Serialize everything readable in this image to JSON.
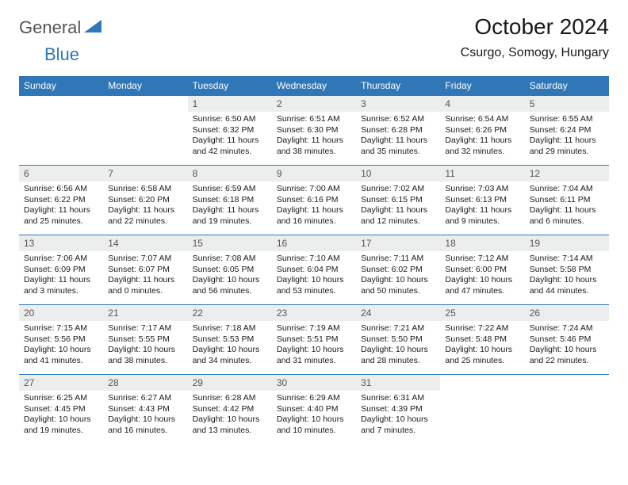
{
  "brand": {
    "part1": "General",
    "part2": "Blue",
    "text_color": "#555555",
    "accent_color": "#2f77b7"
  },
  "title": "October 2024",
  "location": "Csurgo, Somogy, Hungary",
  "colors": {
    "header_bg": "#2f77b7",
    "header_text": "#ffffff",
    "daynum_bg": "#eceded",
    "daynum_text": "#555555",
    "border": "#2f77b7",
    "body_text": "#1a1a1a"
  },
  "fonts": {
    "title_size": 28,
    "location_size": 16,
    "header_size": 12,
    "daynum_size": 12,
    "cell_size": 10.5
  },
  "day_headers": [
    "Sunday",
    "Monday",
    "Tuesday",
    "Wednesday",
    "Thursday",
    "Friday",
    "Saturday"
  ],
  "weeks": [
    [
      null,
      null,
      {
        "n": "1",
        "sr": "6:50 AM",
        "ss": "6:32 PM",
        "dl": "11 hours and 42 minutes."
      },
      {
        "n": "2",
        "sr": "6:51 AM",
        "ss": "6:30 PM",
        "dl": "11 hours and 38 minutes."
      },
      {
        "n": "3",
        "sr": "6:52 AM",
        "ss": "6:28 PM",
        "dl": "11 hours and 35 minutes."
      },
      {
        "n": "4",
        "sr": "6:54 AM",
        "ss": "6:26 PM",
        "dl": "11 hours and 32 minutes."
      },
      {
        "n": "5",
        "sr": "6:55 AM",
        "ss": "6:24 PM",
        "dl": "11 hours and 29 minutes."
      }
    ],
    [
      {
        "n": "6",
        "sr": "6:56 AM",
        "ss": "6:22 PM",
        "dl": "11 hours and 25 minutes."
      },
      {
        "n": "7",
        "sr": "6:58 AM",
        "ss": "6:20 PM",
        "dl": "11 hours and 22 minutes."
      },
      {
        "n": "8",
        "sr": "6:59 AM",
        "ss": "6:18 PM",
        "dl": "11 hours and 19 minutes."
      },
      {
        "n": "9",
        "sr": "7:00 AM",
        "ss": "6:16 PM",
        "dl": "11 hours and 16 minutes."
      },
      {
        "n": "10",
        "sr": "7:02 AM",
        "ss": "6:15 PM",
        "dl": "11 hours and 12 minutes."
      },
      {
        "n": "11",
        "sr": "7:03 AM",
        "ss": "6:13 PM",
        "dl": "11 hours and 9 minutes."
      },
      {
        "n": "12",
        "sr": "7:04 AM",
        "ss": "6:11 PM",
        "dl": "11 hours and 6 minutes."
      }
    ],
    [
      {
        "n": "13",
        "sr": "7:06 AM",
        "ss": "6:09 PM",
        "dl": "11 hours and 3 minutes."
      },
      {
        "n": "14",
        "sr": "7:07 AM",
        "ss": "6:07 PM",
        "dl": "11 hours and 0 minutes."
      },
      {
        "n": "15",
        "sr": "7:08 AM",
        "ss": "6:05 PM",
        "dl": "10 hours and 56 minutes."
      },
      {
        "n": "16",
        "sr": "7:10 AM",
        "ss": "6:04 PM",
        "dl": "10 hours and 53 minutes."
      },
      {
        "n": "17",
        "sr": "7:11 AM",
        "ss": "6:02 PM",
        "dl": "10 hours and 50 minutes."
      },
      {
        "n": "18",
        "sr": "7:12 AM",
        "ss": "6:00 PM",
        "dl": "10 hours and 47 minutes."
      },
      {
        "n": "19",
        "sr": "7:14 AM",
        "ss": "5:58 PM",
        "dl": "10 hours and 44 minutes."
      }
    ],
    [
      {
        "n": "20",
        "sr": "7:15 AM",
        "ss": "5:56 PM",
        "dl": "10 hours and 41 minutes."
      },
      {
        "n": "21",
        "sr": "7:17 AM",
        "ss": "5:55 PM",
        "dl": "10 hours and 38 minutes."
      },
      {
        "n": "22",
        "sr": "7:18 AM",
        "ss": "5:53 PM",
        "dl": "10 hours and 34 minutes."
      },
      {
        "n": "23",
        "sr": "7:19 AM",
        "ss": "5:51 PM",
        "dl": "10 hours and 31 minutes."
      },
      {
        "n": "24",
        "sr": "7:21 AM",
        "ss": "5:50 PM",
        "dl": "10 hours and 28 minutes."
      },
      {
        "n": "25",
        "sr": "7:22 AM",
        "ss": "5:48 PM",
        "dl": "10 hours and 25 minutes."
      },
      {
        "n": "26",
        "sr": "7:24 AM",
        "ss": "5:46 PM",
        "dl": "10 hours and 22 minutes."
      }
    ],
    [
      {
        "n": "27",
        "sr": "6:25 AM",
        "ss": "4:45 PM",
        "dl": "10 hours and 19 minutes."
      },
      {
        "n": "28",
        "sr": "6:27 AM",
        "ss": "4:43 PM",
        "dl": "10 hours and 16 minutes."
      },
      {
        "n": "29",
        "sr": "6:28 AM",
        "ss": "4:42 PM",
        "dl": "10 hours and 13 minutes."
      },
      {
        "n": "30",
        "sr": "6:29 AM",
        "ss": "4:40 PM",
        "dl": "10 hours and 10 minutes."
      },
      {
        "n": "31",
        "sr": "6:31 AM",
        "ss": "4:39 PM",
        "dl": "10 hours and 7 minutes."
      },
      null,
      null
    ]
  ],
  "labels": {
    "sunrise": "Sunrise:",
    "sunset": "Sunset:",
    "daylight": "Daylight:"
  }
}
